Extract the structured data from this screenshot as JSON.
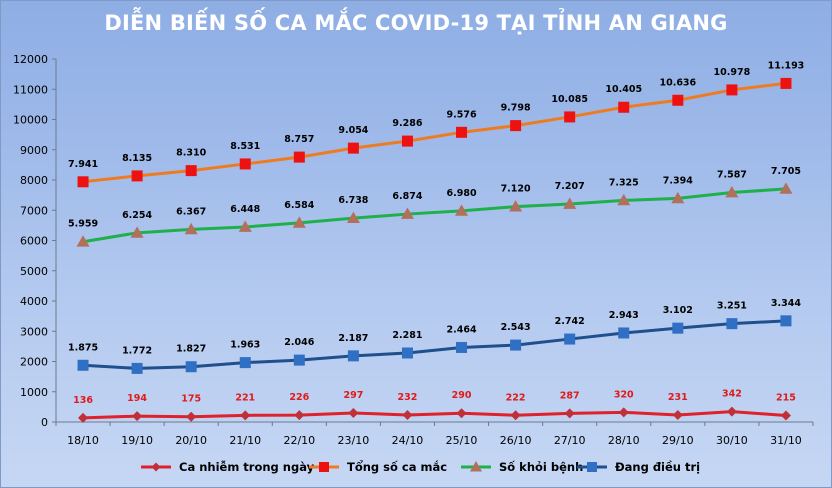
{
  "chart_data": {
    "type": "line",
    "title": "DIỄN BIẾN SỐ CA MẮC COVID-19 TẠI TỈNH AN GIANG",
    "categories": [
      "18/10",
      "19/10",
      "20/10",
      "21/10",
      "22/10",
      "23/10",
      "24/10",
      "25/10",
      "26/10",
      "27/10",
      "28/10",
      "29/10",
      "30/10",
      "31/10"
    ],
    "ylim": [
      0,
      12000
    ],
    "yticks": [
      0,
      1000,
      2000,
      3000,
      4000,
      5000,
      6000,
      7000,
      8000,
      9000,
      10000,
      11000,
      12000
    ],
    "grid": false,
    "legend_position": "bottom",
    "series": [
      {
        "name": "Ca nhiễm trong ngày",
        "color": "#e0202a",
        "marker": "diamond",
        "marker_color": "#c0303a",
        "values": [
          136,
          194,
          175,
          221,
          226,
          297,
          232,
          290,
          222,
          287,
          320,
          231,
          342,
          215
        ],
        "labels": [
          "136",
          "194",
          "175",
          "221",
          "226",
          "297",
          "232",
          "290",
          "222",
          "287",
          "320",
          "231",
          "342",
          "215"
        ]
      },
      {
        "name": "Tổng số ca mắc",
        "color": "#ee7b22",
        "marker": "square",
        "marker_color": "#ee1111",
        "values": [
          7941,
          8135,
          8310,
          8531,
          8757,
          9054,
          9286,
          9576,
          9798,
          10085,
          10405,
          10636,
          10978,
          11193
        ],
        "labels": [
          "7.941",
          "8.135",
          "8.310",
          "8.531",
          "8.757",
          "9.054",
          "9.286",
          "9.576",
          "9.798",
          "10.085",
          "10.405",
          "10.636",
          "10.978",
          "11.193"
        ]
      },
      {
        "name": "Số khỏi bệnh",
        "color": "#1fb04b",
        "marker": "triangle",
        "marker_color": "#b0705a",
        "values": [
          5959,
          6254,
          6367,
          6448,
          6584,
          6738,
          6874,
          6980,
          7120,
          7207,
          7325,
          7394,
          7587,
          7705
        ],
        "labels": [
          "5.959",
          "6.254",
          "6.367",
          "6.448",
          "6.584",
          "6.738",
          "6.874",
          "6.980",
          "7.120",
          "7.207",
          "7.325",
          "7.394",
          "7.587",
          "7.705"
        ]
      },
      {
        "name": "Đang điều trị",
        "color": "#1f4f8c",
        "marker": "square",
        "marker_color": "#2f6fc4",
        "values": [
          1875,
          1772,
          1827,
          1963,
          2046,
          2187,
          2281,
          2464,
          2543,
          2742,
          2943,
          3102,
          3251,
          3344
        ],
        "labels": [
          "1.875",
          "1.772",
          "1.827",
          "1.963",
          "2.046",
          "2.187",
          "2.281",
          "2.464",
          "2.543",
          "2.742",
          "2.943",
          "3.102",
          "3.251",
          "3.344"
        ]
      }
    ]
  }
}
